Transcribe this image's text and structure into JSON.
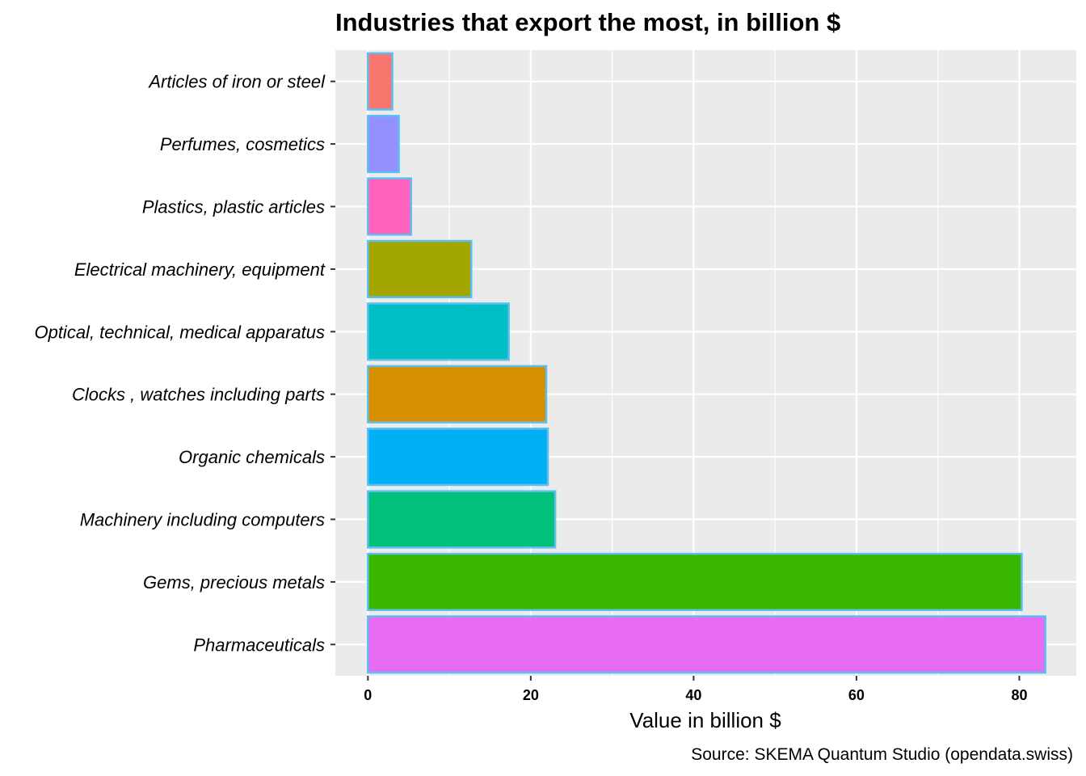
{
  "chart_data": {
    "type": "bar",
    "orientation": "horizontal",
    "title": "Industries that export the most, in billion $",
    "xlabel": "Value in billion $",
    "ylabel": "",
    "caption": "Source: SKEMA Quantum Studio (opendata.swiss)",
    "xlim": [
      -4,
      87
    ],
    "xticks": [
      0,
      20,
      40,
      60,
      80
    ],
    "grid": true,
    "legend": "none",
    "bar_outline_color": "#5bc0f0",
    "panel_background": "#ebebeb",
    "categories": [
      "Articles of iron or steel",
      "Perfumes, cosmetics",
      "Plastics, plastic articles",
      "Electrical machinery, equipment",
      "Optical, technical, medical apparatus",
      "Clocks , watches including parts",
      "Organic chemicals",
      "Machinery including computers",
      "Gems, precious metals",
      "Pharmaceuticals"
    ],
    "values": [
      3.0,
      3.8,
      5.3,
      12.7,
      17.3,
      21.9,
      22.1,
      23.0,
      80.3,
      83.2
    ],
    "colors": [
      "#f8766d",
      "#9590ff",
      "#ff62bc",
      "#a3a500",
      "#00bfc4",
      "#d89000",
      "#00b0f6",
      "#00c07a",
      "#39b600",
      "#e76bf3"
    ]
  }
}
